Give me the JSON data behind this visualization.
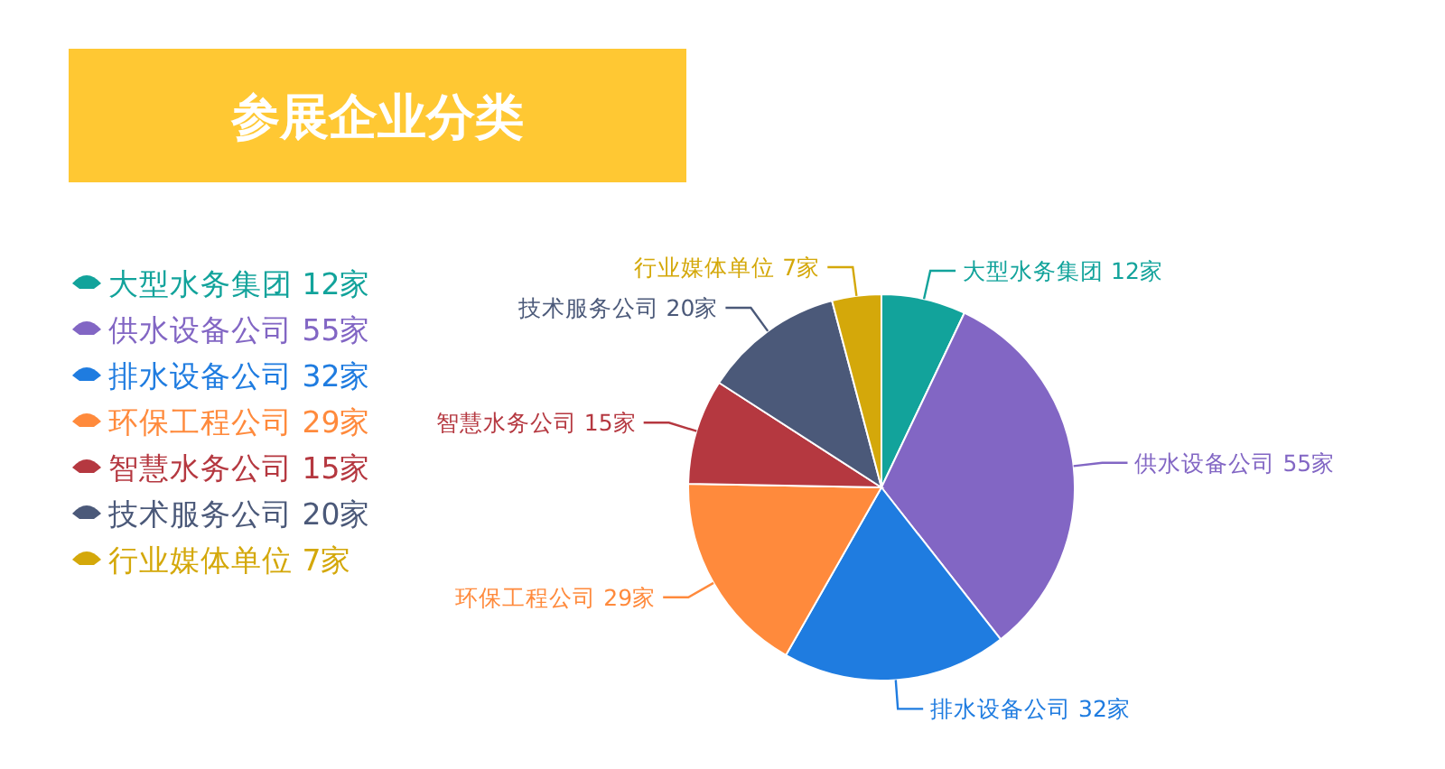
{
  "chart_data": {
    "type": "pie",
    "title": "参展企业分类",
    "categories": [
      "大型水务集团",
      "供水设备公司",
      "排水设备公司",
      "环保工程公司",
      "智慧水务公司",
      "技术服务公司",
      "行业媒体单位"
    ],
    "values": [
      12,
      55,
      32,
      29,
      15,
      20,
      7
    ],
    "value_labels": [
      "12家",
      "55家",
      "32家",
      "29家",
      "15家",
      "20家",
      "7家"
    ],
    "colors": [
      "#12a39b",
      "#8266c4",
      "#1f7ce0",
      "#ff8a3c",
      "#b53840",
      "#4b5979",
      "#d4a80a"
    ],
    "legend": "left"
  }
}
